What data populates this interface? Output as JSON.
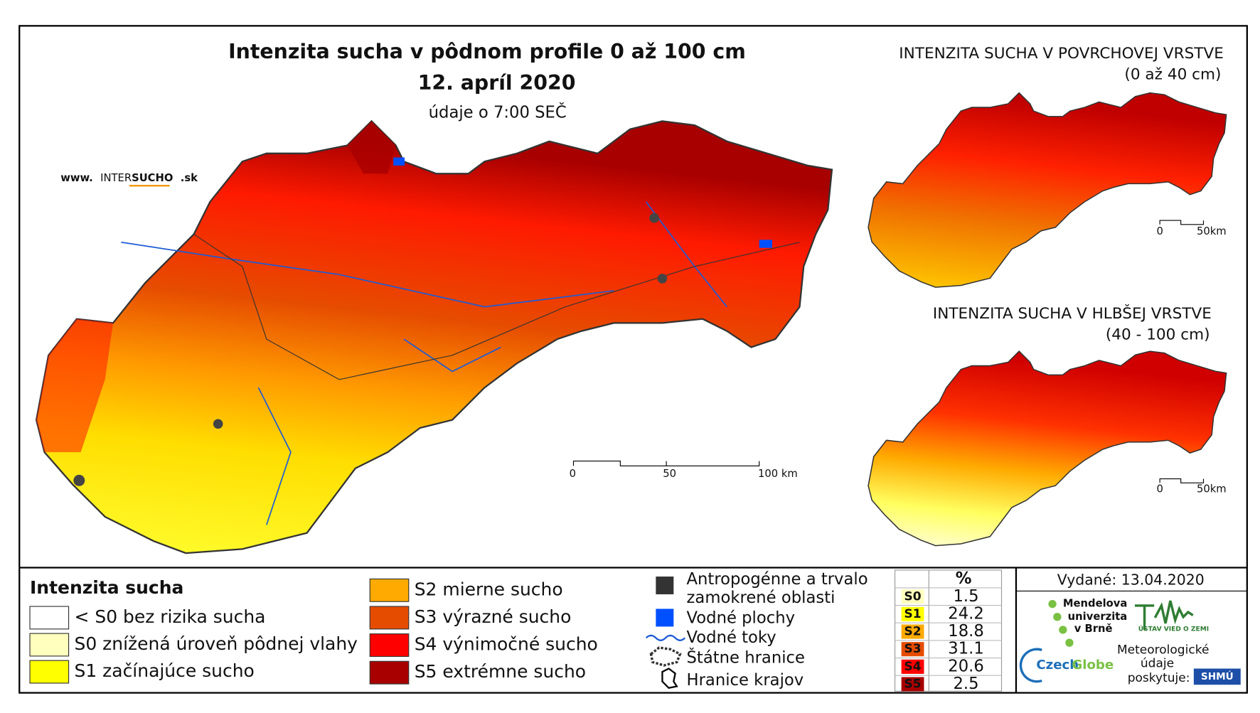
{
  "main_map": {
    "title": "Intenzita sucha v pôdnom profile 0 až 100 cm",
    "date": "12. apríl 2020",
    "time_note": "údaje o 7:00 SEČ",
    "website": [
      "www.",
      "INTER",
      "SUCHO",
      ".sk"
    ],
    "scale": [
      "0",
      "50",
      "100 km"
    ]
  },
  "insets": [
    {
      "title": "INTENZITA SUCHA V POVRCHOVEJ VRSTVE",
      "subtitle": "(0 až 40 cm)",
      "scale": [
        "0",
        "50km"
      ]
    },
    {
      "title": "INTENZITA SUCHA V HLBŠEJ VRSTVE",
      "subtitle": "(40 - 100 cm)",
      "scale": [
        "0",
        "50km"
      ]
    }
  ],
  "legend": {
    "title": "Intenzita sucha",
    "classes": [
      {
        "label": "< S0 bez rizika sucha",
        "color": "#ffffff"
      },
      {
        "label": "S0 znížená úroveň pôdnej vlahy",
        "color": "#ffffbe"
      },
      {
        "label": "S1 začínajúce sucho",
        "color": "#ffff00"
      },
      {
        "label": "S2 mierne sucho",
        "color": "#ffaa00"
      },
      {
        "label": "S3 výrazné sucho",
        "color": "#e64c00"
      },
      {
        "label": "S4 výnimočné sucho",
        "color": "#ff0000"
      },
      {
        "label": "S5 extrémne sucho",
        "color": "#a80000"
      }
    ],
    "symbols": [
      "Antropogénne a trvalo",
      "zamokrené oblasti",
      "Vodné plochy",
      "Vodné toky",
      "Štátne hranice",
      "Hranice krajov"
    ]
  },
  "stats": {
    "header": "%",
    "rows": [
      {
        "class": "S0",
        "percent": 1.5,
        "color": "#ffffbe"
      },
      {
        "class": "S1",
        "percent": 24.2,
        "color": "#ffff00"
      },
      {
        "class": "S2",
        "percent": 18.8,
        "color": "#ffaa00"
      },
      {
        "class": "S3",
        "percent": 31.1,
        "color": "#e64c00"
      },
      {
        "class": "S4",
        "percent": 20.6,
        "color": "#ff0000"
      },
      {
        "class": "S5",
        "percent": 2.5,
        "color": "#a80000"
      }
    ]
  },
  "issued": "Vydané: 13.04.2020",
  "logos": {
    "mendel": [
      "Mendelova",
      "univerzita",
      "v Brně"
    ],
    "czechglobe": [
      "Czech",
      "Globe"
    ],
    "ustav": "ÚSTAV VIED O ZEMI",
    "meteo": [
      "Meteorologické",
      "údaje",
      "poskytuje:"
    ],
    "shmu": "SHMÚ"
  }
}
